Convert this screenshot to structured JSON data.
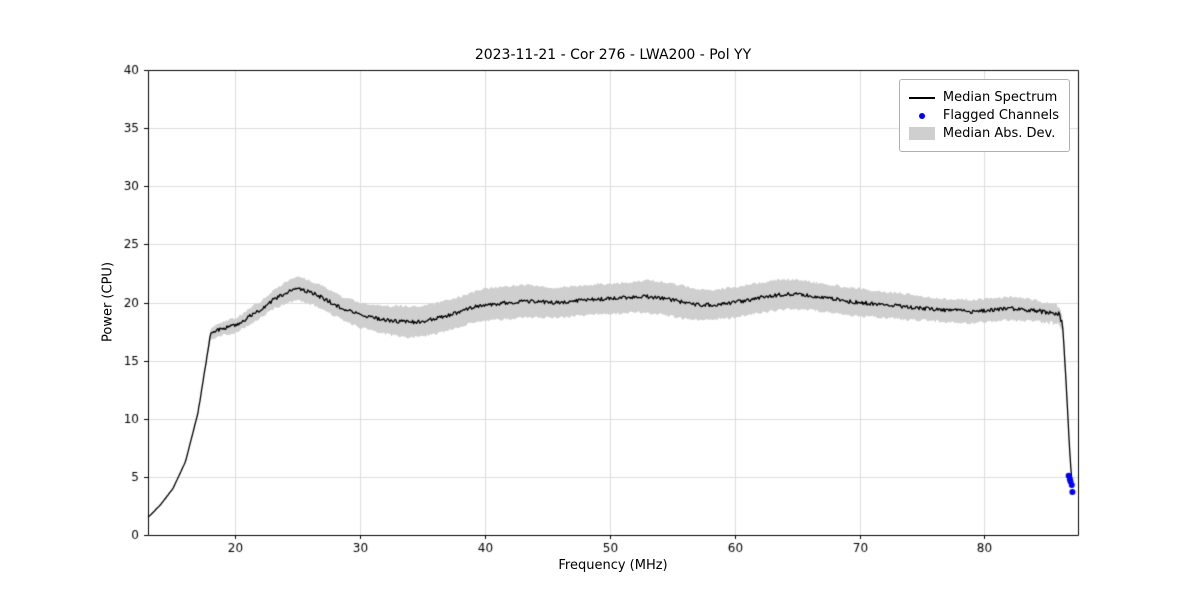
{
  "chart_data": {
    "type": "line",
    "title": "2023-11-21 - Cor 276 - LWA200 - Pol YY",
    "xlabel": "Frequency (MHz)",
    "ylabel": "Power (CPU)",
    "xlim": [
      13,
      87.5
    ],
    "ylim": [
      0,
      40
    ],
    "xticks": [
      20,
      30,
      40,
      50,
      60,
      70,
      80
    ],
    "yticks": [
      0,
      5,
      10,
      15,
      20,
      25,
      30,
      35,
      40
    ],
    "grid": true,
    "legend": {
      "position": "upper right",
      "entries": [
        "Median Spectrum",
        "Flagged Channels",
        "Median Abs. Dev."
      ]
    },
    "colors": {
      "median": "#000000",
      "flagged": "#0000ff",
      "band": "#cfcfcf",
      "grid": "#dcdcdc",
      "frame": "#000000"
    },
    "noise_amplitude": 0.16,
    "median_spectrum": {
      "x": [
        13,
        14,
        15,
        16,
        17,
        17.5,
        18,
        19,
        20,
        21,
        22,
        23,
        24,
        25,
        26,
        27,
        28,
        29,
        30,
        31,
        32,
        33,
        34,
        35,
        36,
        37,
        38,
        39,
        40,
        41,
        42,
        43,
        44,
        45,
        46,
        47,
        48,
        49,
        50,
        51,
        52,
        53,
        54,
        55,
        56,
        57,
        58,
        59,
        60,
        61,
        62,
        63,
        64,
        65,
        66,
        67,
        68,
        69,
        70,
        71,
        72,
        73,
        74,
        75,
        76,
        77,
        78,
        79,
        80,
        81,
        82,
        83,
        84,
        85,
        85.5,
        86,
        86.3,
        86.6,
        86.9,
        87.1
      ],
      "y": [
        1.5,
        2.6,
        4.0,
        6.3,
        10.5,
        13.8,
        17.3,
        17.8,
        18.0,
        18.7,
        19.4,
        20.2,
        20.8,
        21.2,
        20.9,
        20.4,
        19.8,
        19.3,
        18.9,
        18.7,
        18.5,
        18.4,
        18.3,
        18.4,
        18.6,
        18.9,
        19.2,
        19.6,
        19.8,
        19.9,
        20.0,
        20.1,
        20.1,
        20.0,
        20.0,
        20.1,
        20.2,
        20.3,
        20.3,
        20.4,
        20.5,
        20.5,
        20.4,
        20.2,
        20.0,
        19.8,
        19.8,
        19.9,
        20.0,
        20.2,
        20.4,
        20.6,
        20.7,
        20.7,
        20.6,
        20.4,
        20.3,
        20.1,
        20.0,
        19.9,
        19.8,
        19.7,
        19.6,
        19.5,
        19.4,
        19.3,
        19.3,
        19.2,
        19.3,
        19.4,
        19.5,
        19.4,
        19.3,
        19.2,
        19.1,
        18.9,
        18.0,
        12.0,
        6.0,
        3.7
      ]
    },
    "median_abs_dev": [
      0.05,
      0.05,
      0.05,
      0.05,
      0.05,
      0.1,
      0.5,
      0.6,
      0.6,
      0.7,
      0.7,
      0.8,
      0.9,
      1.0,
      1.0,
      1.0,
      1.0,
      1.0,
      1.1,
      1.1,
      1.2,
      1.3,
      1.3,
      1.3,
      1.3,
      1.3,
      1.3,
      1.3,
      1.4,
      1.4,
      1.4,
      1.4,
      1.4,
      1.3,
      1.3,
      1.3,
      1.3,
      1.3,
      1.3,
      1.3,
      1.3,
      1.4,
      1.4,
      1.4,
      1.4,
      1.3,
      1.3,
      1.3,
      1.3,
      1.3,
      1.3,
      1.3,
      1.3,
      1.3,
      1.2,
      1.2,
      1.2,
      1.2,
      1.2,
      1.1,
      1.1,
      1.1,
      1.1,
      1.0,
      1.0,
      1.0,
      1.0,
      1.0,
      1.0,
      1.0,
      1.0,
      1.0,
      0.9,
      0.9,
      0.9,
      0.8,
      0.6,
      0.4,
      0.2,
      0.1
    ],
    "flagged_channels": {
      "x": [
        86.75,
        86.85,
        86.9,
        87.0,
        87.05
      ],
      "y": [
        5.1,
        4.8,
        4.6,
        4.3,
        3.7
      ]
    }
  }
}
